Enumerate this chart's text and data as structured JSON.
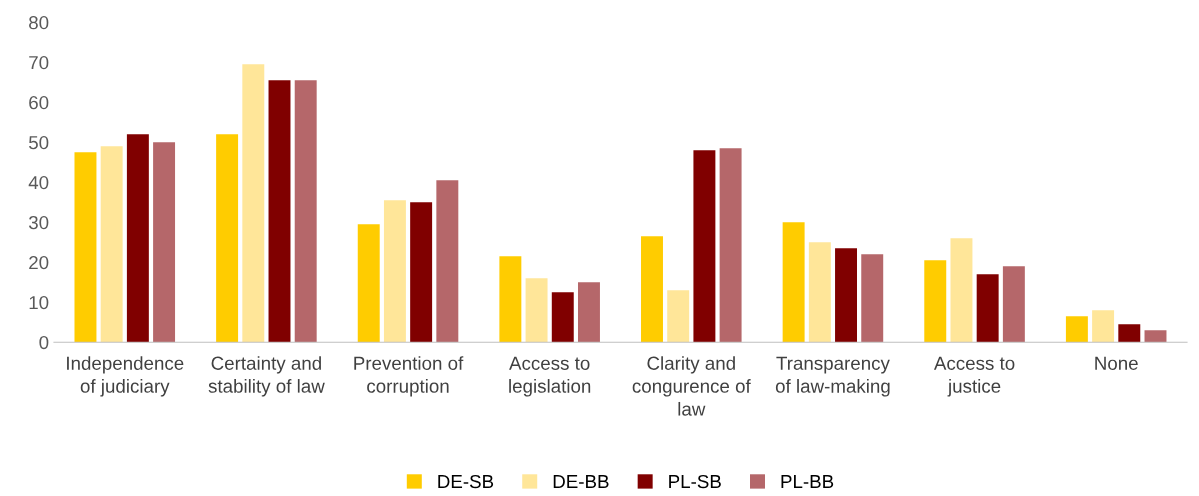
{
  "chart_data": {
    "type": "bar",
    "categories": [
      "Independence\nof judiciary",
      "Certainty and\nstability of law",
      "Prevention of\ncorruption",
      "Access to\nlegislation",
      "Clarity and\ncongurence of\nlaw",
      "Transparency\nof law-making",
      "Access to\njustice",
      "None"
    ],
    "series": [
      {
        "name": "DE-SB",
        "color": "#ffcc00",
        "values": [
          47.5,
          52,
          29.5,
          21.5,
          26.5,
          30,
          20.5,
          6.5
        ]
      },
      {
        "name": "DE-BB",
        "color": "#ffe699",
        "values": [
          49,
          69.5,
          35.5,
          16,
          13,
          25,
          26,
          8
        ]
      },
      {
        "name": "PL-SB",
        "color": "#800000",
        "values": [
          52,
          65.5,
          35,
          12.5,
          48,
          23.5,
          17,
          4.5
        ]
      },
      {
        "name": "PL-BB",
        "color": "#b5676a",
        "values": [
          50,
          65.5,
          40.5,
          15,
          48.5,
          22,
          19,
          3
        ]
      }
    ],
    "ylim": [
      0,
      80
    ],
    "yticks": [
      0,
      10,
      20,
      30,
      40,
      50,
      60,
      70,
      80
    ],
    "grid": false,
    "legend": "bottom"
  }
}
